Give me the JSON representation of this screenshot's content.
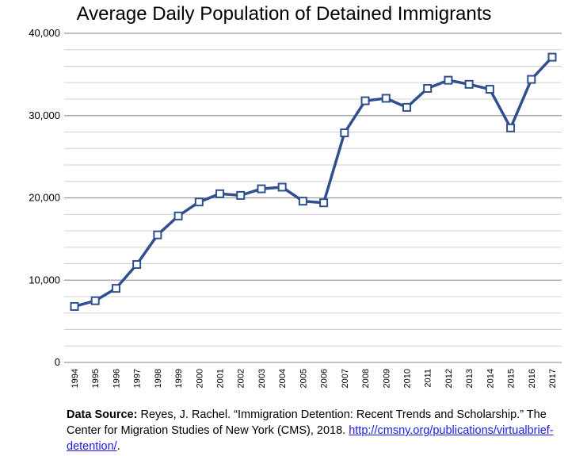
{
  "chart_data": {
    "type": "line",
    "title": "Average Daily Population of Detained Immigrants",
    "xlabel": "",
    "ylabel": "",
    "ylim": [
      0,
      40000
    ],
    "y_ticks": [
      0,
      10000,
      20000,
      30000,
      40000
    ],
    "y_tick_labels": [
      "0",
      "10,000",
      "20,000",
      "30,000",
      "40,000"
    ],
    "minor_gridlines": true,
    "grid": true,
    "legend": "none",
    "x": [
      "1994",
      "1995",
      "1996",
      "1997",
      "1998",
      "1999",
      "2000",
      "2001",
      "2002",
      "2003",
      "2004",
      "2005",
      "2006",
      "2007",
      "2008",
      "2009",
      "2010",
      "2011",
      "2012",
      "2013",
      "2014",
      "2015",
      "2016",
      "2017"
    ],
    "series": [
      {
        "values": [
          6800,
          7500,
          9000,
          11900,
          15500,
          17800,
          19500,
          20500,
          20300,
          21100,
          21300,
          19600,
          19400,
          27900,
          31800,
          32100,
          31000,
          33300,
          34300,
          33800,
          33200,
          28500,
          34400,
          37100
        ]
      }
    ],
    "colors": {
      "line": "#2f4f8f",
      "marker_fill": "#ffffff",
      "grid": "#a6a6a6"
    }
  },
  "source": {
    "label": "Data Source:",
    "text": " Reyes, J. Rachel. “Immigration Detention: Recent Trends and Scholarship.” The Center for Migration Studies of New York (CMS), 2018. ",
    "link_text": "http://cmsny.org/publications/virtualbrief-detention/",
    "trailing": "."
  }
}
